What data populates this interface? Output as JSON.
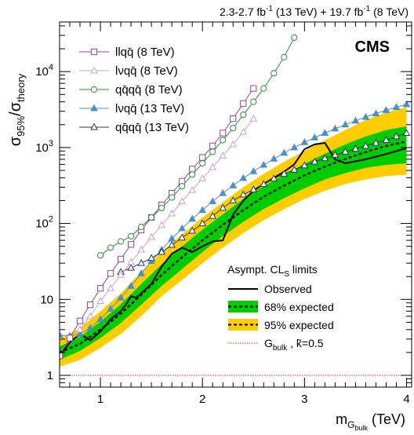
{
  "chart_data": {
    "type": "line",
    "header": {
      "lumi_part1": "2.3-2.7 fb",
      "lumi_part1_sup": "-1",
      "lumi_part1_energy": " (13 TeV) + 19.7 fb",
      "lumi_part2_sup": "-1",
      "lumi_part2_energy": " (8 TeV)"
    },
    "cms_label": "CMS",
    "xlabel": {
      "main": "m",
      "sub": "G",
      "subsub": "bulk",
      "unit": " (TeV)"
    },
    "ylabel": {
      "sigma1": "σ",
      "sub1": "95%",
      "slash": "/",
      "sigma2": "σ",
      "sub2": "theory"
    },
    "x_range": [
      0.6,
      4.05
    ],
    "y_range": [
      0.7,
      45000
    ],
    "y_log": true,
    "x_ticks": [
      {
        "v": 1,
        "label": "1"
      },
      {
        "v": 2,
        "label": "2"
      },
      {
        "v": 3,
        "label": "3"
      },
      {
        "v": 4,
        "label": "4"
      }
    ],
    "y_ticks": [
      {
        "v": 1,
        "label": "1",
        "exp": ""
      },
      {
        "v": 10,
        "label": "10",
        "exp": ""
      },
      {
        "v": 100,
        "label": "10",
        "exp": "2"
      },
      {
        "v": 1000,
        "label": "10",
        "exp": "3"
      },
      {
        "v": 10000,
        "label": "10",
        "exp": "4"
      }
    ],
    "band95": {
      "x": [
        0.6,
        0.8,
        1.0,
        1.2,
        1.4,
        1.6,
        1.8,
        2.0,
        2.2,
        2.4,
        2.6,
        2.8,
        3.0,
        3.2,
        3.4,
        3.6,
        3.8,
        4.0
      ],
      "lo": [
        1.3,
        1.6,
        2.3,
        3.5,
        6.0,
        11,
        18,
        30,
        48,
        75,
        110,
        155,
        210,
        270,
        330,
        380,
        420,
        440
      ],
      "hi": [
        3.0,
        4.2,
        7.0,
        12,
        23,
        42,
        72,
        120,
        190,
        300,
        450,
        650,
        900,
        1250,
        1700,
        2300,
        2900,
        3400
      ]
    },
    "band68": {
      "x": [
        0.6,
        0.8,
        1.0,
        1.2,
        1.4,
        1.6,
        1.8,
        2.0,
        2.2,
        2.4,
        2.6,
        2.8,
        3.0,
        3.2,
        3.4,
        3.6,
        3.8,
        4.0
      ],
      "lo": [
        1.6,
        2.1,
        3.1,
        4.9,
        8.5,
        15,
        25,
        42,
        68,
        105,
        155,
        215,
        290,
        380,
        460,
        540,
        590,
        620
      ],
      "hi": [
        2.4,
        3.2,
        5.1,
        8.7,
        16,
        29,
        50,
        83,
        132,
        210,
        310,
        440,
        610,
        830,
        1100,
        1400,
        1700,
        1900
      ]
    },
    "series": [
      {
        "key": "expected",
        "name": "68% expected",
        "color": "#000000",
        "style": "dashed",
        "x": [
          0.6,
          0.8,
          1.0,
          1.2,
          1.4,
          1.6,
          1.8,
          2.0,
          2.2,
          2.4,
          2.6,
          2.8,
          3.0,
          3.2,
          3.4,
          3.6,
          3.8,
          4.0
        ],
        "y": [
          2.0,
          2.6,
          4.0,
          6.5,
          11.5,
          21,
          36,
          60,
          96,
          150,
          225,
          315,
          430,
          560,
          710,
          870,
          1050,
          1200
        ]
      },
      {
        "key": "observed",
        "name": "Observed",
        "color": "#000000",
        "style": "solid",
        "x": [
          0.6,
          0.65,
          0.7,
          0.75,
          0.8,
          0.85,
          0.9,
          0.95,
          1.0,
          1.05,
          1.1,
          1.15,
          1.2,
          1.25,
          1.3,
          1.35,
          1.4,
          1.45,
          1.5,
          1.6,
          1.7,
          1.8,
          1.9,
          2.0,
          2.1,
          2.2,
          2.3,
          2.4,
          2.5,
          2.6,
          2.7,
          2.8,
          2.9,
          3.0,
          3.1,
          3.2,
          3.3,
          3.4,
          3.6,
          3.8,
          4.0
        ],
        "y": [
          1.8,
          2.2,
          2.7,
          3.1,
          3.4,
          3.2,
          2.9,
          3.3,
          3.8,
          4.5,
          5.5,
          6.2,
          7.0,
          8.5,
          11,
          10.5,
          12,
          14,
          16,
          27,
          40,
          48,
          42,
          50,
          58,
          60,
          130,
          200,
          270,
          330,
          400,
          480,
          600,
          950,
          1100,
          1150,
          700,
          620,
          700,
          820,
          980
        ]
      },
      {
        "key": "llqq8",
        "name": "llqq̄ (8 TeV)",
        "color": "#93469a",
        "marker": "square-open",
        "x": [
          0.6,
          0.7,
          0.8,
          0.9,
          1.0,
          1.1,
          1.2,
          1.3,
          1.4,
          1.5,
          1.6,
          1.7,
          1.8,
          1.9,
          2.0,
          2.1,
          2.2,
          2.3,
          2.4,
          2.5
        ],
        "y": [
          1.8,
          3.1,
          5.2,
          8.5,
          14,
          22,
          34,
          53,
          82,
          120,
          175,
          250,
          360,
          520,
          740,
          1050,
          1550,
          2400,
          3800,
          6000
        ]
      },
      {
        "key": "lvqq8",
        "name": "lνqq̄ (8 TeV)",
        "color": "#c7a0d2",
        "marker": "triangle-open",
        "x": [
          0.8,
          0.9,
          1.0,
          1.1,
          1.2,
          1.3,
          1.4,
          1.5,
          1.6,
          1.7,
          1.8,
          1.9,
          2.0,
          2.1,
          2.2,
          2.3,
          2.4,
          2.5
        ],
        "y": [
          4.0,
          6.0,
          9.5,
          14,
          21,
          31,
          45,
          66,
          95,
          135,
          195,
          275,
          390,
          550,
          780,
          1100,
          1600,
          2400
        ]
      },
      {
        "key": "qqqq8",
        "name": "qq̄qq̄ (8 TeV)",
        "color": "#2e8b3c",
        "marker": "circle-open",
        "x": [
          1.0,
          1.1,
          1.2,
          1.3,
          1.4,
          1.5,
          1.6,
          1.7,
          1.8,
          1.9,
          2.0,
          2.1,
          2.2,
          2.3,
          2.4,
          2.5,
          2.6,
          2.7,
          2.8,
          2.9
        ],
        "y": [
          38,
          48,
          58,
          68,
          90,
          120,
          160,
          220,
          310,
          440,
          620,
          880,
          1250,
          1800,
          2700,
          4000,
          6000,
          9500,
          15500,
          28000
        ]
      },
      {
        "key": "lvqq13",
        "name": "lνqq̄ (13 TeV)",
        "color": "#4a90c8",
        "marker": "triangle-filled",
        "x": [
          0.6,
          0.7,
          0.8,
          0.9,
          1.0,
          1.1,
          1.2,
          1.3,
          1.4,
          1.5,
          1.6,
          1.7,
          1.8,
          1.9,
          2.0,
          2.1,
          2.2,
          2.3,
          2.4,
          2.5,
          2.6,
          2.7,
          2.8,
          2.9,
          3.0,
          3.1,
          3.2,
          3.3,
          3.4,
          3.5,
          3.6,
          3.7,
          3.8,
          3.9,
          4.0
        ],
        "y": [
          3.4,
          3.3,
          3.5,
          4.2,
          5.5,
          7.5,
          10.5,
          15,
          22,
          32,
          45,
          63,
          86,
          115,
          150,
          195,
          250,
          315,
          395,
          485,
          590,
          710,
          850,
          1000,
          1170,
          1350,
          1550,
          1770,
          2000,
          2250,
          2520,
          2800,
          3100,
          3400,
          3700
        ]
      },
      {
        "key": "qqqq13",
        "name": "qq̄qq̄ (13 TeV)",
        "color": "#1e3a5f",
        "marker": "triangle-open",
        "x": [
          1.2,
          1.3,
          1.4,
          1.5,
          1.6,
          1.7,
          1.8,
          1.9,
          2.0,
          2.1,
          2.2,
          2.3,
          2.4,
          2.5,
          2.6,
          2.7,
          2.8,
          2.9,
          3.0,
          3.1,
          3.2,
          3.3,
          3.4,
          3.5,
          3.6,
          3.7,
          3.8,
          3.9,
          4.0
        ],
        "y": [
          23,
          26,
          30,
          35,
          42,
          52,
          65,
          80,
          100,
          125,
          160,
          200,
          240,
          280,
          330,
          390,
          450,
          510,
          580,
          650,
          720,
          800,
          880,
          960,
          1050,
          1150,
          1250,
          1400,
          1550
        ]
      },
      {
        "key": "theory",
        "name": "G_bulk , k̃=0.5",
        "color": "#e8202a",
        "style": "dotted",
        "x": [
          0.6,
          4.05
        ],
        "y": [
          1,
          1
        ]
      }
    ],
    "legend_top": [
      {
        "key": "llqq8",
        "label": "llqq̄ (8 TeV)"
      },
      {
        "key": "lvqq8",
        "label": "lνqq̄ (8 TeV)"
      },
      {
        "key": "qqqq8",
        "label": "qq̄qq̄ (8 TeV)"
      },
      {
        "key": "lvqq13",
        "label": "lνqq̄ (13 TeV)"
      },
      {
        "key": "qqqq13",
        "label": "qq̄qq̄ (13 TeV)"
      }
    ],
    "legend_bottom": {
      "title": "Asympt. CL",
      "title_sub": "S",
      "title_rest": " limits",
      "observed": "Observed",
      "exp68": "68% expected",
      "exp95": "95% expected",
      "theory_main": "G",
      "theory_sub": "bulk",
      "theory_rest": " , k̃=0.5"
    },
    "colors": {
      "band95": "#ffcc00",
      "band68": "#00cc00",
      "theory": "#e8202a"
    }
  }
}
